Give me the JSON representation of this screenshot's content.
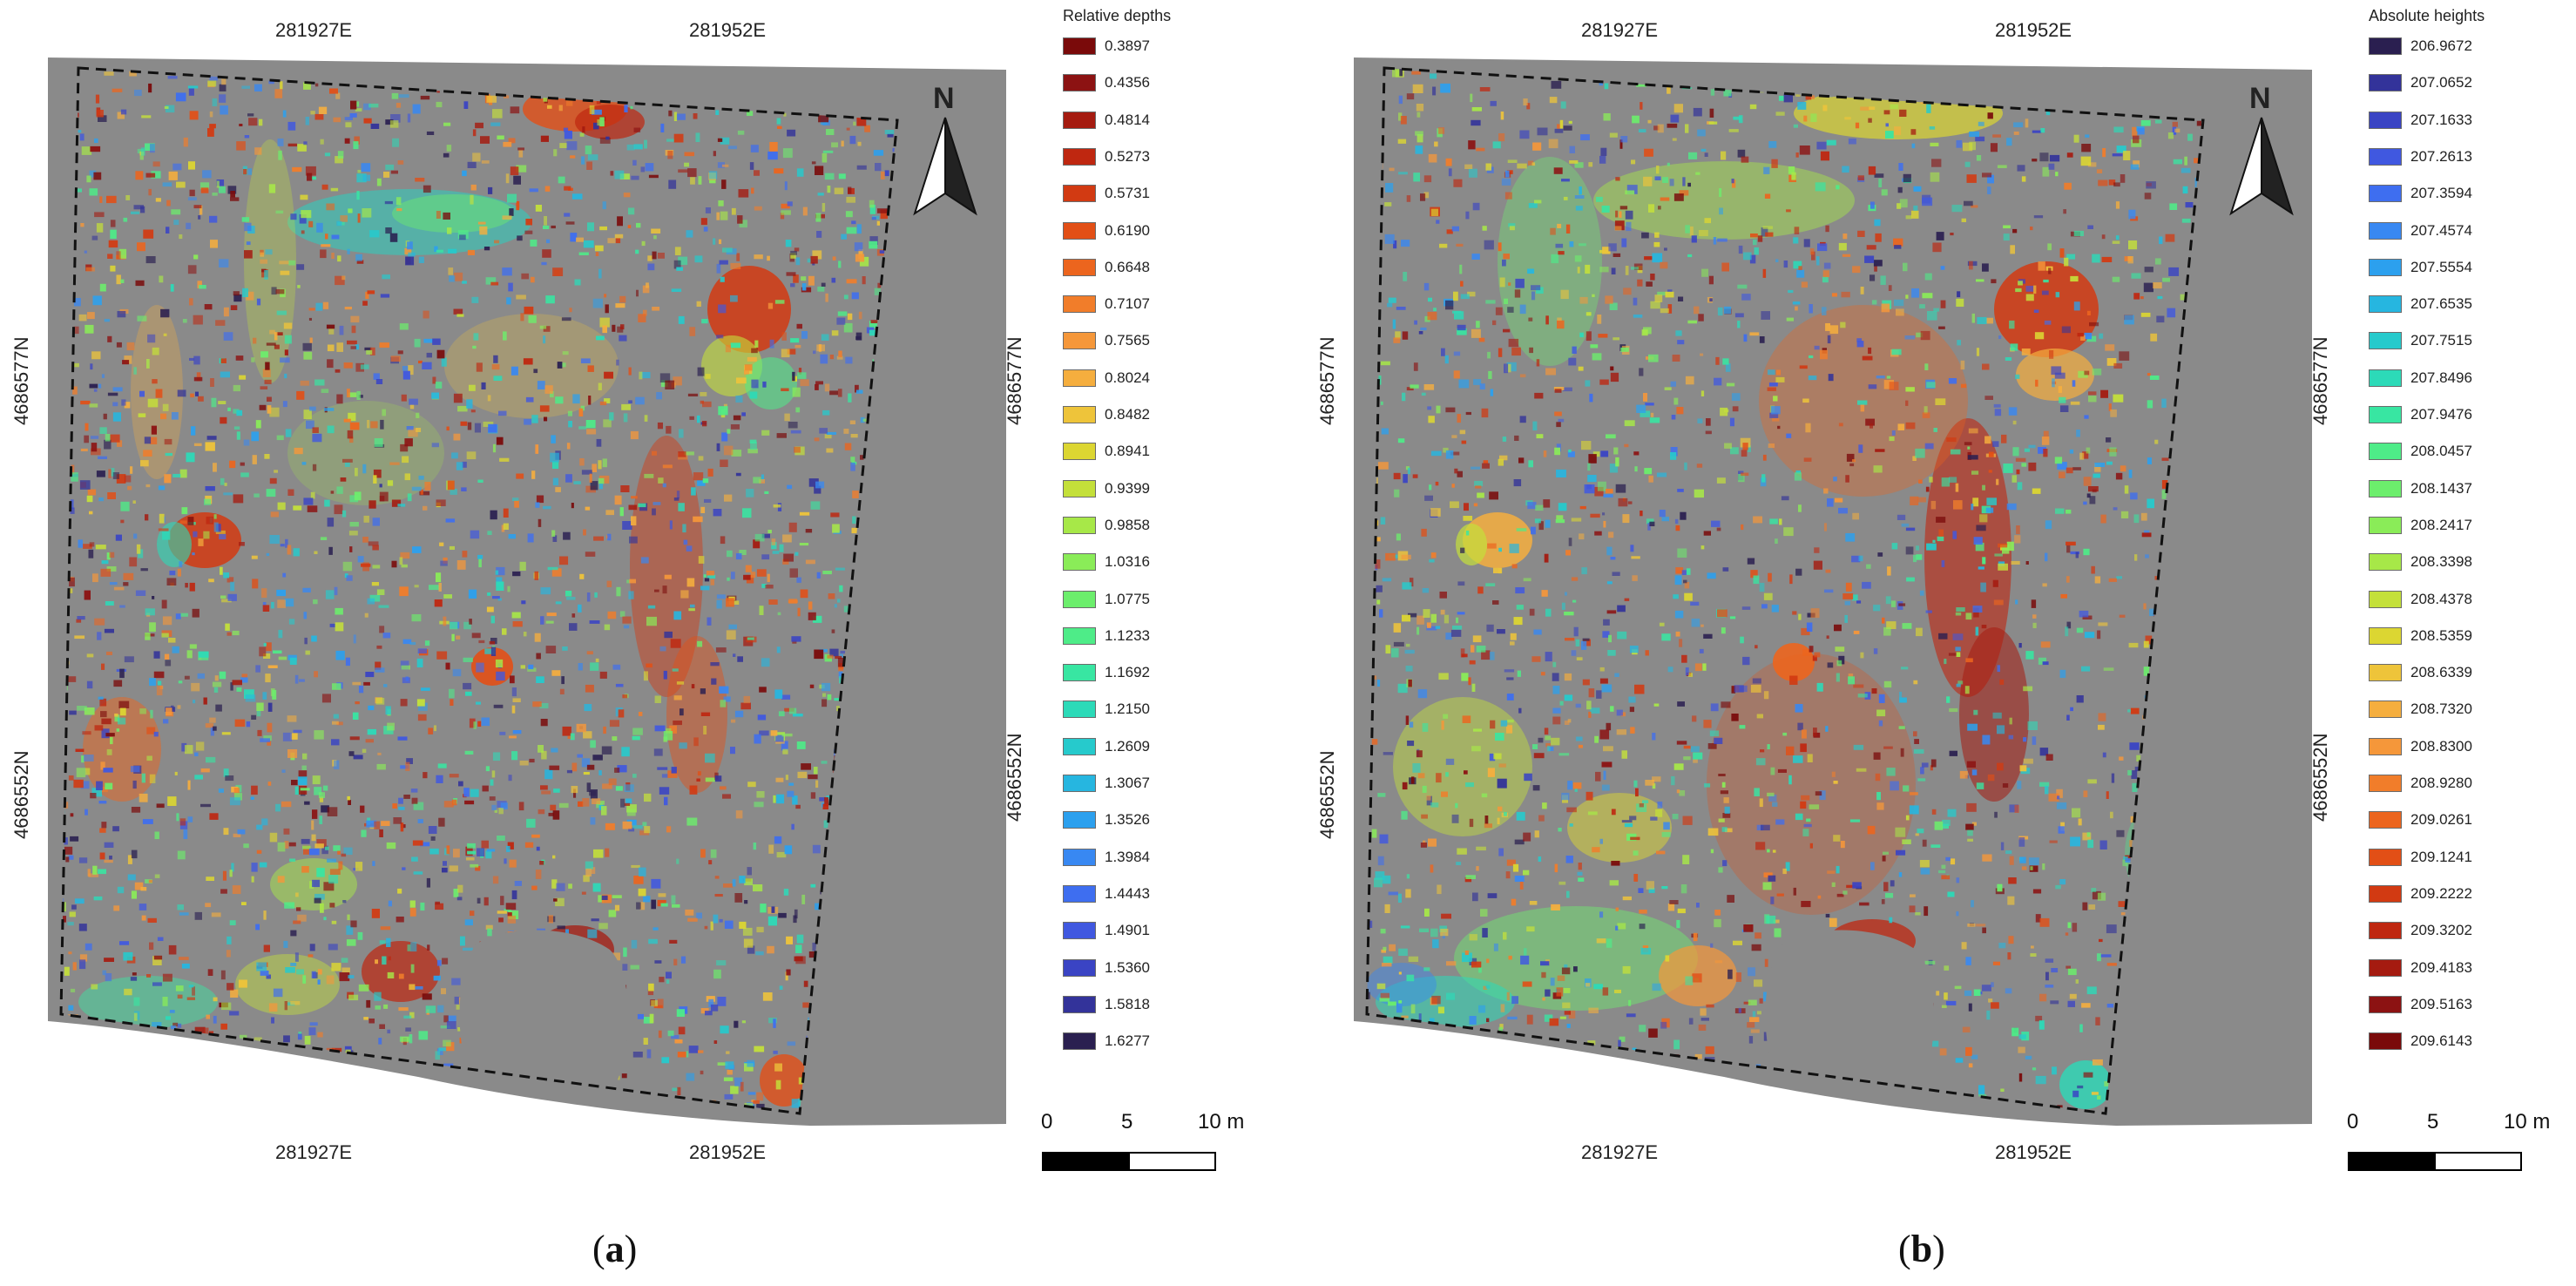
{
  "panels": [
    {
      "id": "a",
      "caption_open": "(",
      "caption_letter": "a",
      "caption_close": ")",
      "coords": {
        "top_left": "281927E",
        "top_right": "281952E",
        "bottom_left": "281927E",
        "bottom_right": "281952E",
        "left_upper": "4686577N",
        "left_lower": "4686552N",
        "right_upper": "4686577N",
        "right_lower": "4686552N"
      },
      "north_label": "N",
      "legend_title": "Relative depths",
      "legend": [
        {
          "label": "0.3897",
          "color": "#7a0a0a"
        },
        {
          "label": "0.4356",
          "color": "#8c1212"
        },
        {
          "label": "0.4814",
          "color": "#a51b10"
        },
        {
          "label": "0.5273",
          "color": "#bf2710"
        },
        {
          "label": "0.5731",
          "color": "#d23a12"
        },
        {
          "label": "0.6190",
          "color": "#e24f16"
        },
        {
          "label": "0.6648",
          "color": "#ec651e"
        },
        {
          "label": "0.7107",
          "color": "#f17d2a"
        },
        {
          "label": "0.7565",
          "color": "#f5973a"
        },
        {
          "label": "0.8024",
          "color": "#f5ae3e"
        },
        {
          "label": "0.8482",
          "color": "#eec43a"
        },
        {
          "label": "0.8941",
          "color": "#dcd632"
        },
        {
          "label": "0.9399",
          "color": "#c4e03a"
        },
        {
          "label": "0.9858",
          "color": "#a7e848"
        },
        {
          "label": "1.0316",
          "color": "#8aec58"
        },
        {
          "label": "1.0775",
          "color": "#6cee6c"
        },
        {
          "label": "1.1233",
          "color": "#4eec88"
        },
        {
          "label": "1.1692",
          "color": "#38e6a2"
        },
        {
          "label": "1.2150",
          "color": "#2cdab8"
        },
        {
          "label": "1.2609",
          "color": "#26cacc"
        },
        {
          "label": "1.3067",
          "color": "#26b6e0"
        },
        {
          "label": "1.3526",
          "color": "#2ca0ee"
        },
        {
          "label": "1.3984",
          "color": "#3888f2"
        },
        {
          "label": "1.4443",
          "color": "#3e6ef0"
        },
        {
          "label": "1.4901",
          "color": "#4058e0"
        },
        {
          "label": "1.5360",
          "color": "#3a44c4"
        },
        {
          "label": "1.5818",
          "color": "#33339a"
        },
        {
          "label": "1.6277",
          "color": "#2a1f50"
        }
      ],
      "scale": {
        "zero": "0",
        "mid": "5",
        "end": "10 m"
      }
    },
    {
      "id": "b",
      "caption_open": "(",
      "caption_letter": "b",
      "caption_close": ")",
      "coords": {
        "top_left": "281927E",
        "top_right": "281952E",
        "bottom_left": "281927E",
        "bottom_right": "281952E",
        "left_upper": "4686577N",
        "left_lower": "4686552N",
        "right_upper": "4686577N",
        "right_lower": "4686552N"
      },
      "north_label": "N",
      "legend_title": "Absolute heights",
      "legend": [
        {
          "label": "206.9672",
          "color": "#2a1f50"
        },
        {
          "label": "207.0652",
          "color": "#33339a"
        },
        {
          "label": "207.1633",
          "color": "#3a44c4"
        },
        {
          "label": "207.2613",
          "color": "#4058e0"
        },
        {
          "label": "207.3594",
          "color": "#3e6ef0"
        },
        {
          "label": "207.4574",
          "color": "#3888f2"
        },
        {
          "label": "207.5554",
          "color": "#2ca0ee"
        },
        {
          "label": "207.6535",
          "color": "#26b6e0"
        },
        {
          "label": "207.7515",
          "color": "#26cacc"
        },
        {
          "label": "207.8496",
          "color": "#2cdab8"
        },
        {
          "label": "207.9476",
          "color": "#38e6a2"
        },
        {
          "label": "208.0457",
          "color": "#4eec88"
        },
        {
          "label": "208.1437",
          "color": "#6cee6c"
        },
        {
          "label": "208.2417",
          "color": "#8aec58"
        },
        {
          "label": "208.3398",
          "color": "#a7e848"
        },
        {
          "label": "208.4378",
          "color": "#c4e03a"
        },
        {
          "label": "208.5359",
          "color": "#dcd632"
        },
        {
          "label": "208.6339",
          "color": "#eec43a"
        },
        {
          "label": "208.7320",
          "color": "#f5ae3e"
        },
        {
          "label": "208.8300",
          "color": "#f5973a"
        },
        {
          "label": "208.9280",
          "color": "#f17d2a"
        },
        {
          "label": "209.0261",
          "color": "#ec651e"
        },
        {
          "label": "209.1241",
          "color": "#e24f16"
        },
        {
          "label": "209.2222",
          "color": "#d23a12"
        },
        {
          "label": "209.3202",
          "color": "#bf2710"
        },
        {
          "label": "209.4183",
          "color": "#a51b10"
        },
        {
          "label": "209.5163",
          "color": "#8c1212"
        },
        {
          "label": "209.6143",
          "color": "#7a0a0a"
        }
      ],
      "scale": {
        "zero": "0",
        "mid": "5",
        "end": "10 m"
      }
    }
  ]
}
